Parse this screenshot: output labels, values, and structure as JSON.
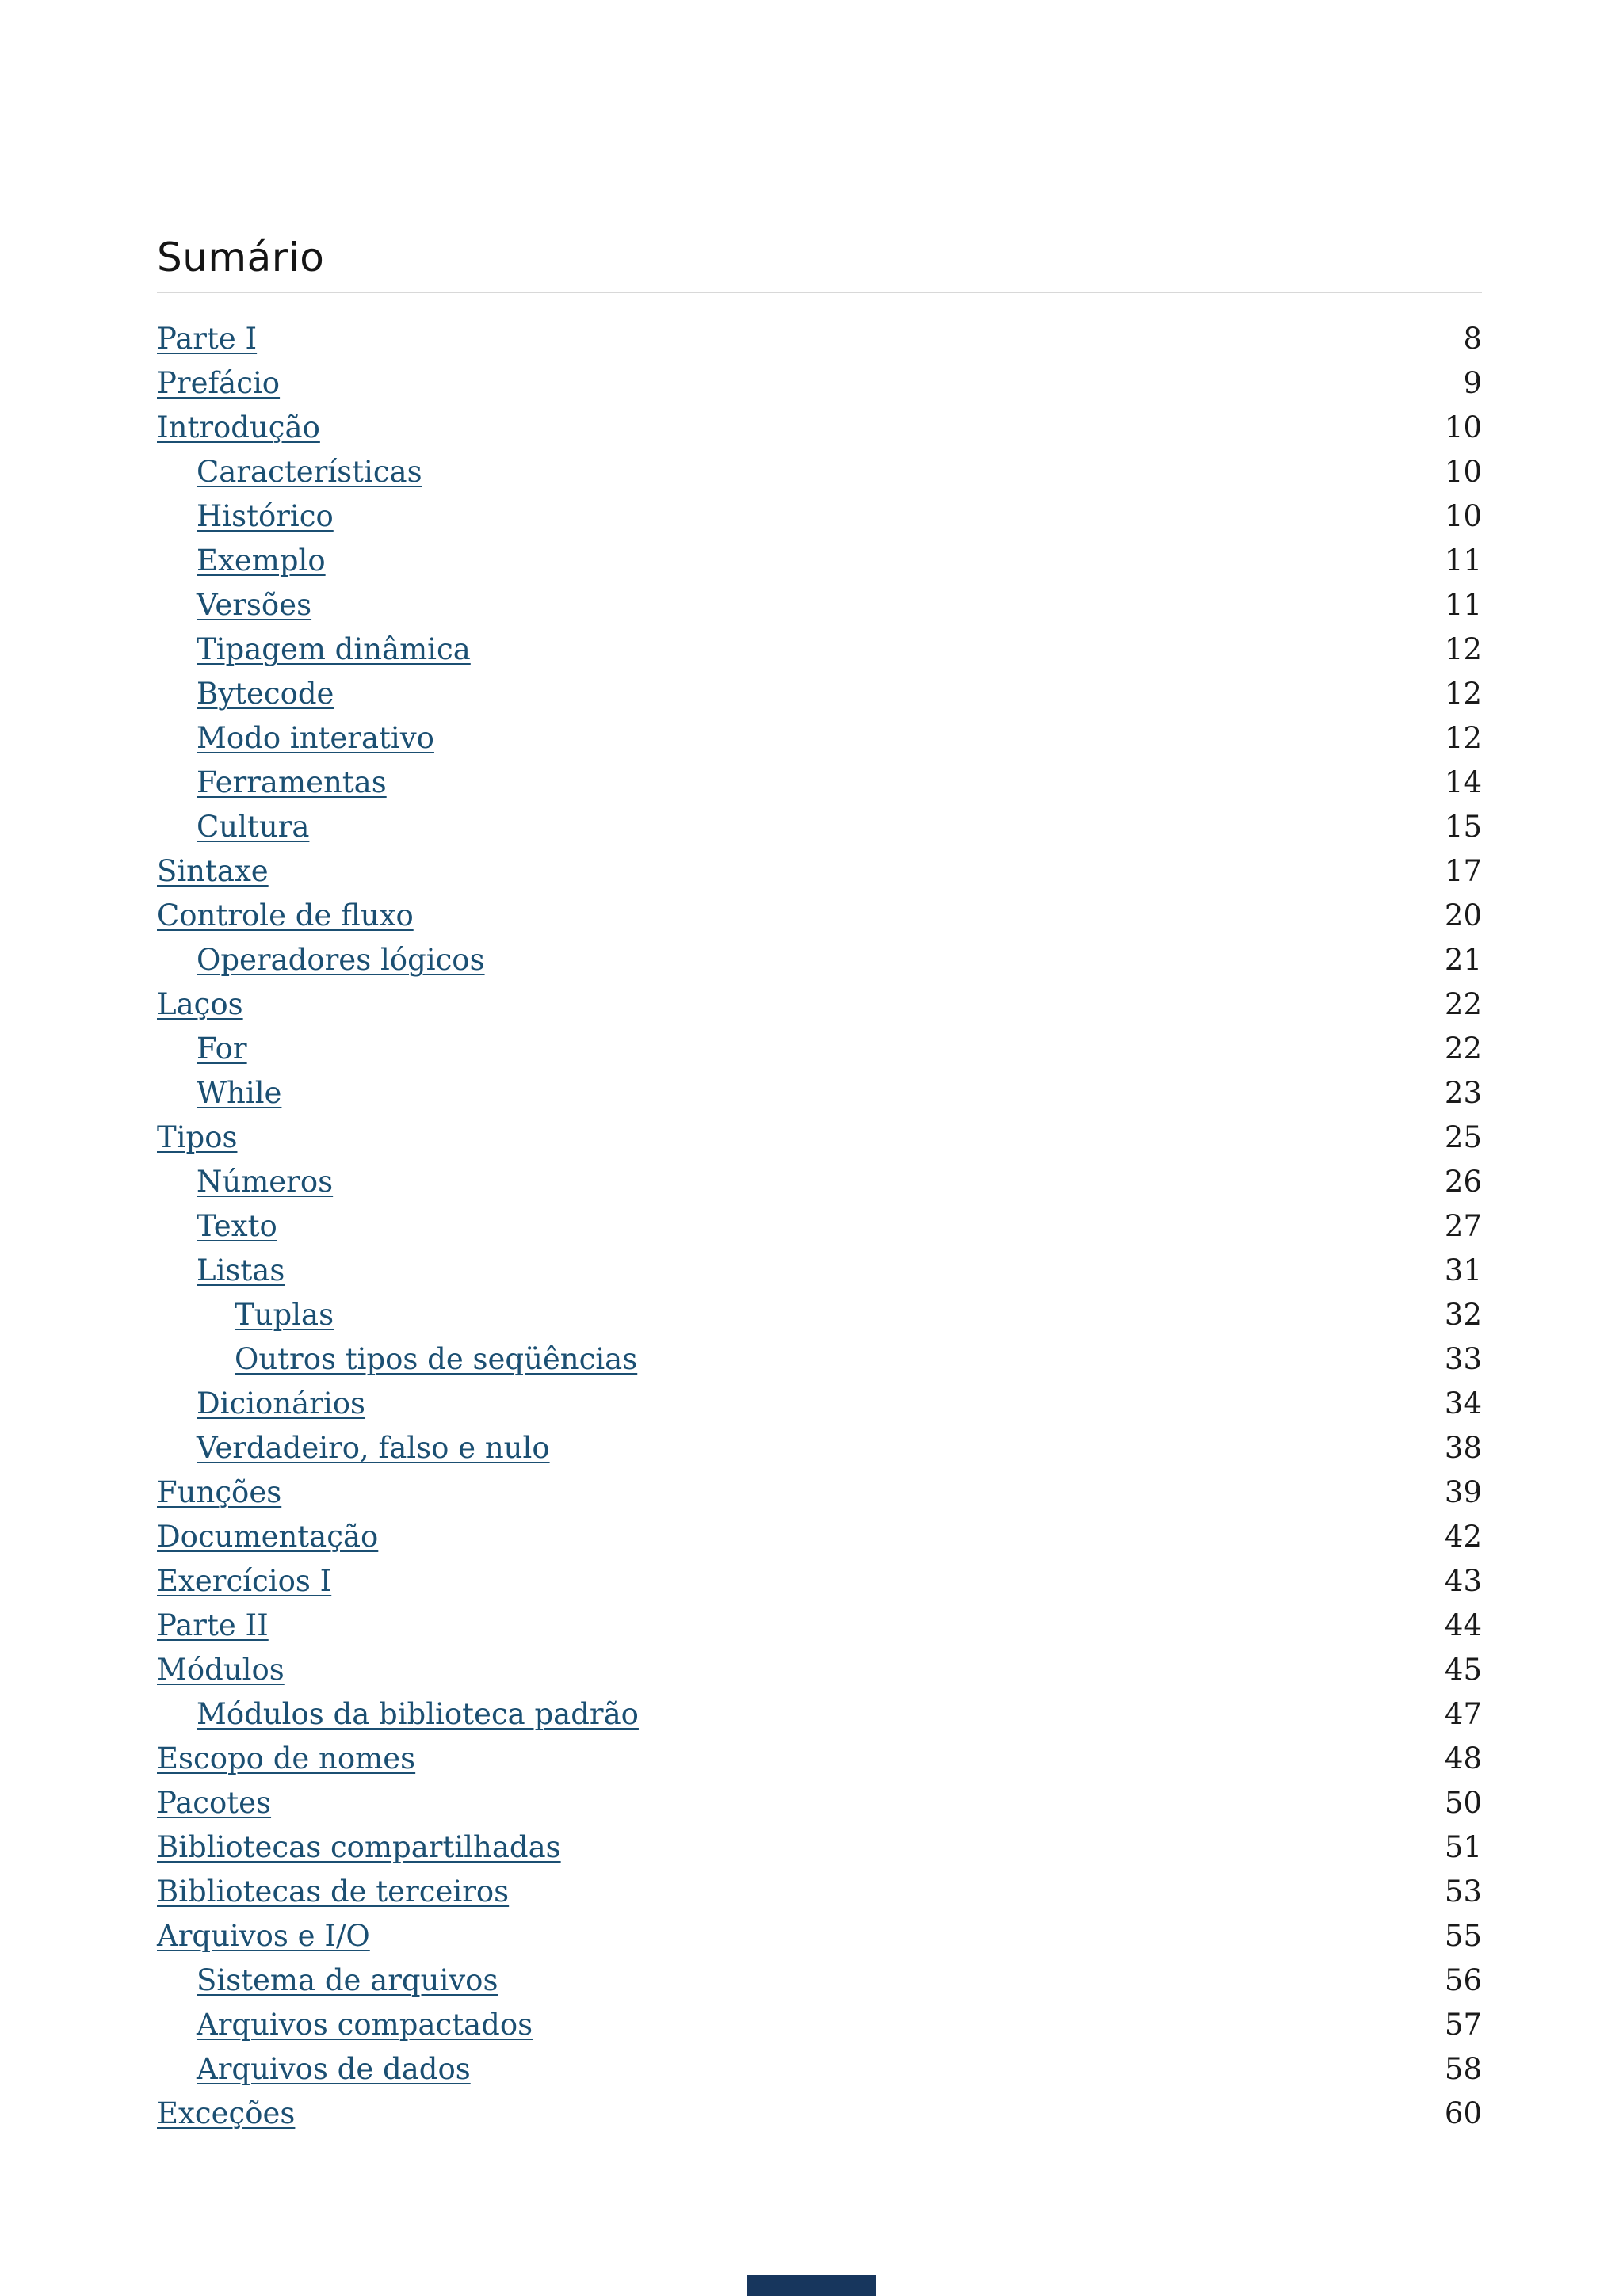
{
  "document": {
    "title": "Sumário"
  },
  "colors": {
    "link": "#1b4f72",
    "page_number": "#1a1a1a",
    "rule": "#d8d8d8",
    "footer_bar": "#17365d",
    "background": "#ffffff"
  },
  "toc": {
    "entries": [
      {
        "label": "Parte I",
        "page": "8",
        "level": 0
      },
      {
        "label": "Prefácio",
        "page": "9",
        "level": 0
      },
      {
        "label": "Introdução",
        "page": "10",
        "level": 0
      },
      {
        "label": "Características",
        "page": "10",
        "level": 1
      },
      {
        "label": "Histórico",
        "page": "10",
        "level": 1
      },
      {
        "label": "Exemplo",
        "page": "11",
        "level": 1
      },
      {
        "label": "Versões",
        "page": "11",
        "level": 1
      },
      {
        "label": "Tipagem dinâmica",
        "page": "12",
        "level": 1
      },
      {
        "label": "Bytecode",
        "page": "12",
        "level": 1
      },
      {
        "label": "Modo interativo",
        "page": "12",
        "level": 1
      },
      {
        "label": "Ferramentas",
        "page": "14",
        "level": 1
      },
      {
        "label": "Cultura",
        "page": "15",
        "level": 1
      },
      {
        "label": "Sintaxe",
        "page": "17",
        "level": 0
      },
      {
        "label": "Controle de fluxo",
        "page": "20",
        "level": 0
      },
      {
        "label": "Operadores lógicos",
        "page": "21",
        "level": 1
      },
      {
        "label": "Laços",
        "page": "22",
        "level": 0
      },
      {
        "label": "For",
        "page": "22",
        "level": 1
      },
      {
        "label": "While",
        "page": "23",
        "level": 1
      },
      {
        "label": "Tipos",
        "page": "25",
        "level": 0
      },
      {
        "label": "Números",
        "page": "26",
        "level": 1
      },
      {
        "label": "Texto",
        "page": "27",
        "level": 1
      },
      {
        "label": "Listas",
        "page": "31",
        "level": 1
      },
      {
        "label": "Tuplas",
        "page": "32",
        "level": 2
      },
      {
        "label": "Outros tipos de seqüências",
        "page": "33",
        "level": 2
      },
      {
        "label": "Dicionários",
        "page": "34",
        "level": 1
      },
      {
        "label": "Verdadeiro, falso e nulo",
        "page": "38",
        "level": 1
      },
      {
        "label": "Funções",
        "page": "39",
        "level": 0
      },
      {
        "label": "Documentação",
        "page": "42",
        "level": 0
      },
      {
        "label": "Exercícios I",
        "page": "43",
        "level": 0
      },
      {
        "label": "Parte II",
        "page": "44",
        "level": 0
      },
      {
        "label": "Módulos",
        "page": "45",
        "level": 0
      },
      {
        "label": "Módulos da biblioteca padrão",
        "page": "47",
        "level": 1
      },
      {
        "label": "Escopo de nomes",
        "page": "48",
        "level": 0
      },
      {
        "label": "Pacotes",
        "page": "50",
        "level": 0
      },
      {
        "label": "Bibliotecas compartilhadas",
        "page": "51",
        "level": 0
      },
      {
        "label": "Bibliotecas de terceiros",
        "page": "53",
        "level": 0
      },
      {
        "label": "Arquivos e I/O",
        "page": "55",
        "level": 0
      },
      {
        "label": "Sistema de arquivos",
        "page": "56",
        "level": 1
      },
      {
        "label": "Arquivos compactados",
        "page": "57",
        "level": 1
      },
      {
        "label": "Arquivos de dados",
        "page": "58",
        "level": 1
      },
      {
        "label": "Exceções",
        "page": "60",
        "level": 0
      }
    ]
  }
}
